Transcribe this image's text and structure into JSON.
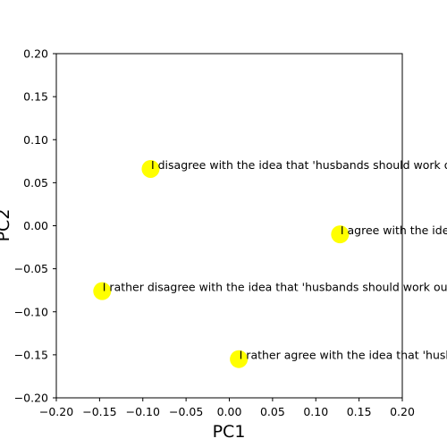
{
  "chart_data": {
    "type": "scatter",
    "xlabel": "PC1",
    "ylabel": "PC2",
    "xlim": [
      -0.2,
      0.2
    ],
    "ylim": [
      -0.2,
      0.2
    ],
    "xticks": [
      "−0.20",
      "−0.15",
      "−0.10",
      "−0.05",
      "0.00",
      "0.05",
      "0.10",
      "0.15",
      "0.20"
    ],
    "yticks": [
      "−0.20",
      "−0.15",
      "−0.10",
      "−0.05",
      "0.00",
      "0.05",
      "0.10",
      "0.15",
      "0.20"
    ],
    "grid": false,
    "point_color": "#ffff00",
    "points": [
      {
        "x": -0.091,
        "y": 0.066,
        "label": "I disagree with the idea that 'husbands should work outside and wives should stay at home'"
      },
      {
        "x": 0.128,
        "y": -0.01,
        "label": "I agree with the idea that 'husbands should work outside and wives should stay at home'"
      },
      {
        "x": -0.147,
        "y": -0.076,
        "label": "I rather disagree with the idea that 'husbands should work outside and wives should stay at home'"
      },
      {
        "x": 0.011,
        "y": -0.155,
        "label": "I rather agree with the idea that 'husbands should work outside and wives should stay at home'"
      }
    ]
  }
}
